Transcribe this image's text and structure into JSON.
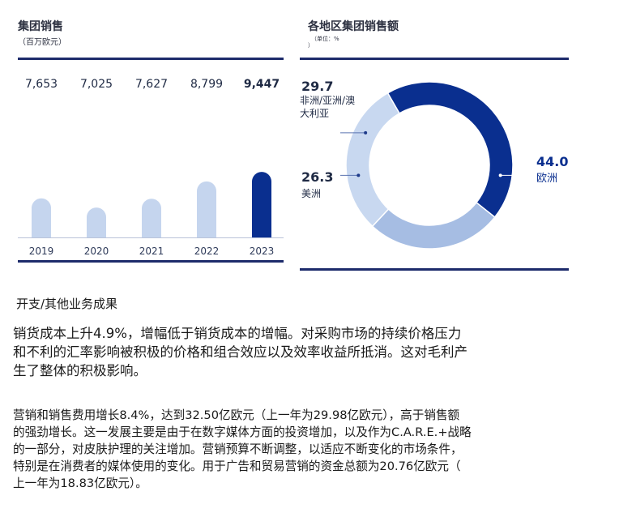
{
  "left_panel": {
    "title": "集团销售",
    "subtitle": "（百万欧元）"
  },
  "right_panel": {
    "title": "各地区集团销售额",
    "subtitle": "（单位：%",
    "subtitle2": "）"
  },
  "chart_data": [
    {
      "type": "bar",
      "title": "集团销售",
      "subtitle": "（百万欧元）",
      "categories": [
        "2019",
        "2020",
        "2021",
        "2022",
        "2023"
      ],
      "values": [
        7653,
        7025,
        7627,
        8799,
        9447
      ],
      "value_labels": [
        "7,653",
        "7,025",
        "7,627",
        "8,799",
        "9,447"
      ],
      "highlight_index": 4,
      "colors": {
        "bar": "#c5d5ee",
        "highlight": "#0a2f8f"
      },
      "grid": false
    },
    {
      "type": "pie",
      "style": "donut",
      "title": "各地区集团销售额",
      "slices": [
        {
          "label": "欧洲",
          "value": 44.0,
          "value_label": "44.0",
          "color": "#0a2f8f"
        },
        {
          "label": "美洲",
          "value": 26.3,
          "value_label": "26.3",
          "color": "#a6bde3"
        },
        {
          "label": "非洲/亚洲/澳大利亚",
          "label_lines": [
            "非洲/亚洲/澳",
            "大利亚"
          ],
          "value": 29.7,
          "value_label": "29.7",
          "color": "#c8d8f0"
        }
      ]
    }
  ],
  "section": {
    "title": "开支/其他业务成果",
    "para1_lines": [
      "销货成本上升4.9%，增幅低于销货成本的增幅。对采购市场的持续价格压力",
      "和不利的汇率影响被积极的价格和组合效应以及效率收益所抵消。这对毛利产",
      "生了整体的积极影响。"
    ],
    "para2_lines": [
      "营销和销售费用增长8.4%，达到32.50亿欧元（上一年为29.98亿欧元），高于销售额",
      "的强劲增长。这一发展主要是由于在数字媒体方面的投资增加，以及作为C.A.R.E.+战略",
      "的一部分，对皮肤护理的关注增加。营销预算不断调整，以适应不断变化的市场条件，",
      "特别是在消费者的媒体使用的变化。用于广告和贸易营销的资金总额为20.76亿欧元（",
      "上一年为18.83亿欧元）。"
    ]
  }
}
